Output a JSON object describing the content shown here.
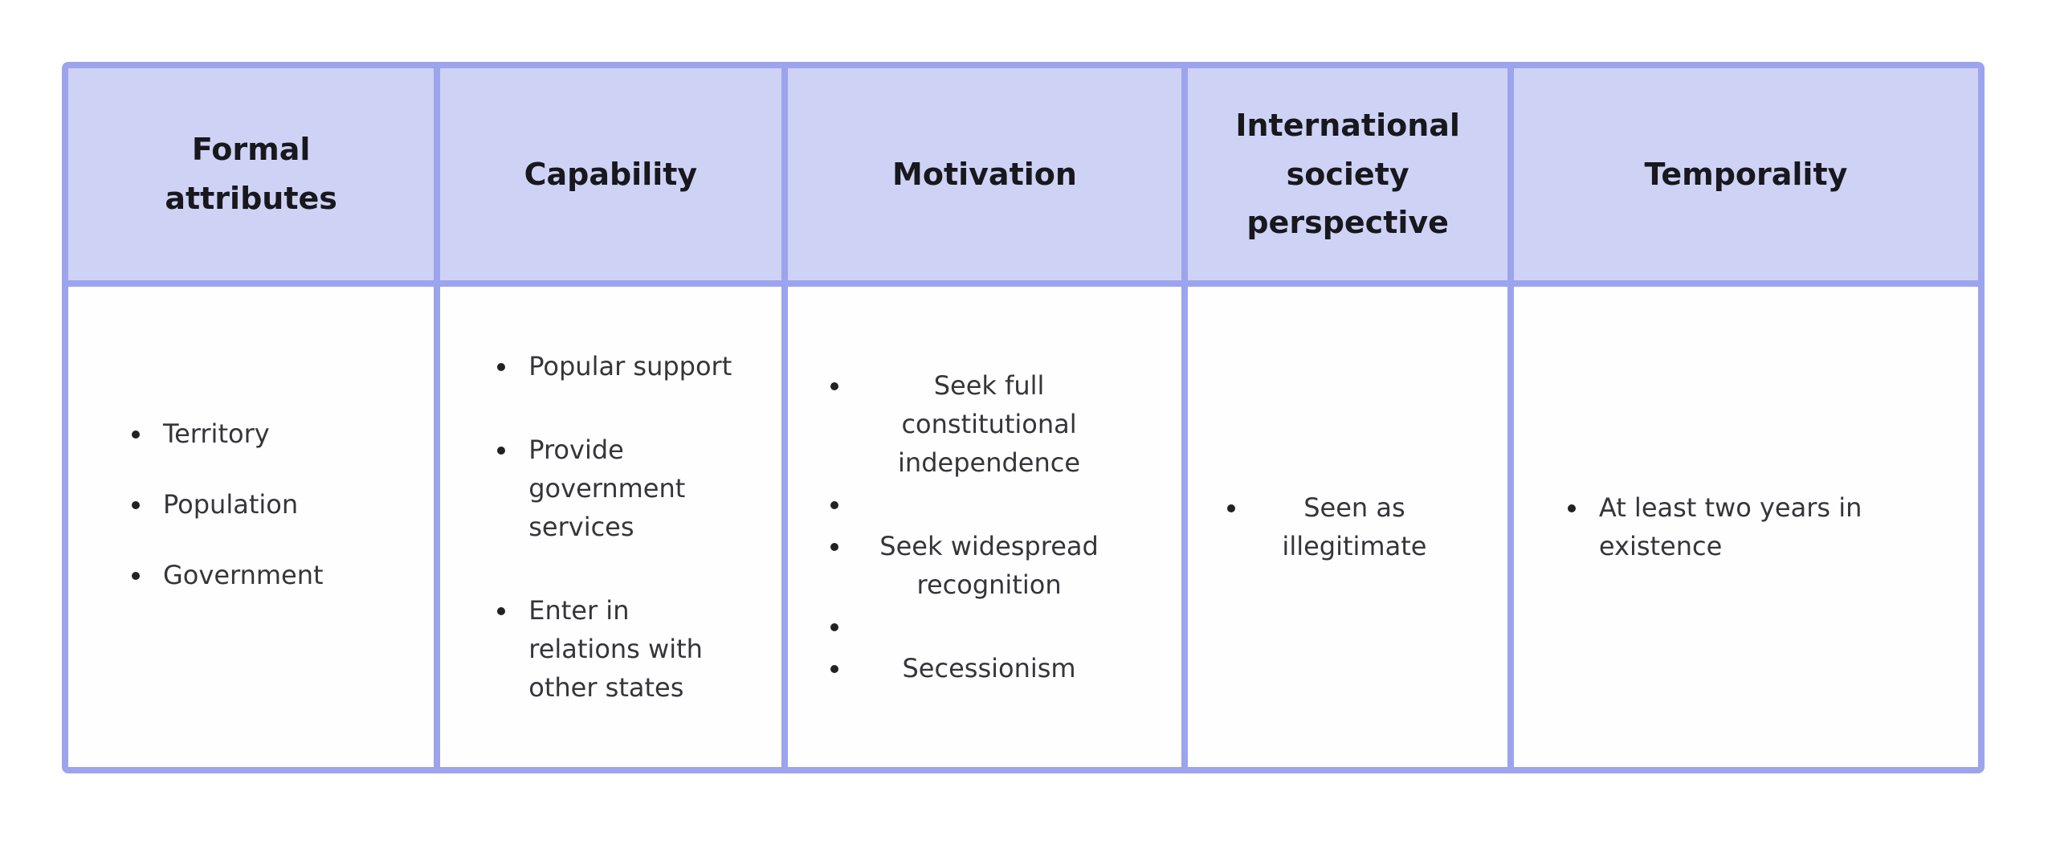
{
  "table": {
    "columns": [
      {
        "id": "formal-attributes",
        "header": "Formal attributes",
        "align": "left",
        "items": [
          "Territory",
          "Population",
          "Government"
        ]
      },
      {
        "id": "capability",
        "header": "Capability",
        "align": "left",
        "items": [
          "Popular support",
          "Provide government services",
          "Enter in relations with other states"
        ]
      },
      {
        "id": "motivation",
        "header": "Motivation",
        "align": "center",
        "items": [
          "Seek full constitutional independence",
          "",
          "Seek widespread recognition",
          "",
          "Secessionism"
        ]
      },
      {
        "id": "international-society-perspective",
        "header": "International society perspective",
        "align": "center",
        "items": [
          "Seen as illegitimate"
        ]
      },
      {
        "id": "temporality",
        "header": "Temporality",
        "align": "left",
        "items": [
          "At least two years in existence"
        ]
      }
    ],
    "colors": {
      "header_bg": "#ced3f6",
      "border": "#9ba4ec",
      "body_bg": "#fefefe",
      "header_text": "#18181d",
      "body_text": "#35353a"
    }
  }
}
